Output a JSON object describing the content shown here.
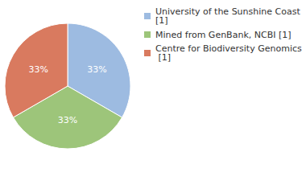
{
  "chart_data": {
    "type": "pie",
    "categories": [
      "University of the Sunshine Coast [1]",
      "Mined from GenBank, NCBI [1]",
      "Centre for Biodiversity Genomics [1]"
    ],
    "values": [
      33,
      33,
      33
    ],
    "value_labels": [
      "33%",
      "33%",
      "33%"
    ],
    "colors": [
      "#9dbbe1",
      "#9dc57a",
      "#d97a5f"
    ],
    "data_labels": true,
    "legend": "top-right"
  }
}
